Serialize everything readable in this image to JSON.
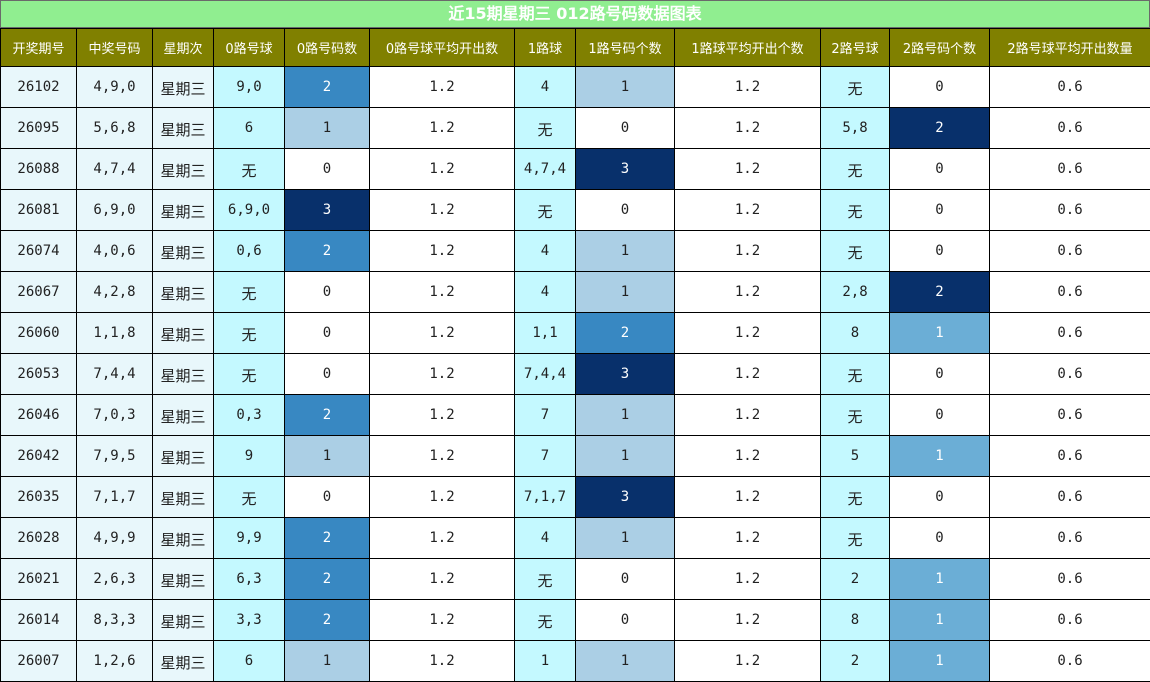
{
  "chart_data": {
    "type": "table",
    "title": "近15期星期三 012路号码数据图表",
    "columns": [
      "开奖期号",
      "中奖号码",
      "星期次",
      "0路号球",
      "0路号码数",
      "0路号球平均开出数",
      "1路球",
      "1路号码个数",
      "1路球平均开出个数",
      "2路号球",
      "2路号码个数",
      "2路号球平均开出数量"
    ],
    "rows": [
      [
        "26102",
        "4,9,0",
        "星期三",
        "9,0",
        "2",
        "1.2",
        "4",
        "1",
        "1.2",
        "无",
        "0",
        "0.6"
      ],
      [
        "26095",
        "5,6,8",
        "星期三",
        "6",
        "1",
        "1.2",
        "无",
        "0",
        "1.2",
        "5,8",
        "2",
        "0.6"
      ],
      [
        "26088",
        "4,7,4",
        "星期三",
        "无",
        "0",
        "1.2",
        "4,7,4",
        "3",
        "1.2",
        "无",
        "0",
        "0.6"
      ],
      [
        "26081",
        "6,9,0",
        "星期三",
        "6,9,0",
        "3",
        "1.2",
        "无",
        "0",
        "1.2",
        "无",
        "0",
        "0.6"
      ],
      [
        "26074",
        "4,0,6",
        "星期三",
        "0,6",
        "2",
        "1.2",
        "4",
        "1",
        "1.2",
        "无",
        "0",
        "0.6"
      ],
      [
        "26067",
        "4,2,8",
        "星期三",
        "无",
        "0",
        "1.2",
        "4",
        "1",
        "1.2",
        "2,8",
        "2",
        "0.6"
      ],
      [
        "26060",
        "1,1,8",
        "星期三",
        "无",
        "0",
        "1.2",
        "1,1",
        "2",
        "1.2",
        "8",
        "1",
        "0.6"
      ],
      [
        "26053",
        "7,4,4",
        "星期三",
        "无",
        "0",
        "1.2",
        "7,4,4",
        "3",
        "1.2",
        "无",
        "0",
        "0.6"
      ],
      [
        "26046",
        "7,0,3",
        "星期三",
        "0,3",
        "2",
        "1.2",
        "7",
        "1",
        "1.2",
        "无",
        "0",
        "0.6"
      ],
      [
        "26042",
        "7,9,5",
        "星期三",
        "9",
        "1",
        "1.2",
        "7",
        "1",
        "1.2",
        "5",
        "1",
        "0.6"
      ],
      [
        "26035",
        "7,1,7",
        "星期三",
        "无",
        "0",
        "1.2",
        "7,1,7",
        "3",
        "1.2",
        "无",
        "0",
        "0.6"
      ],
      [
        "26028",
        "4,9,9",
        "星期三",
        "9,9",
        "2",
        "1.2",
        "4",
        "1",
        "1.2",
        "无",
        "0",
        "0.6"
      ],
      [
        "26021",
        "2,6,3",
        "星期三",
        "6,3",
        "2",
        "1.2",
        "无",
        "0",
        "1.2",
        "2",
        "1",
        "0.6"
      ],
      [
        "26014",
        "8,3,3",
        "星期三",
        "3,3",
        "2",
        "1.2",
        "无",
        "0",
        "1.2",
        "8",
        "1",
        "0.6"
      ],
      [
        "26007",
        "1,2,6",
        "星期三",
        "6",
        "1",
        "1.2",
        "1",
        "1",
        "1.2",
        "2",
        "1",
        "0.6"
      ]
    ]
  },
  "colors": {
    "title_bg": "#90ee90",
    "header_bg": "#808000",
    "row_bg": "#e8f7fb",
    "alt_bg": "#c4f9ff",
    "plain_bg": "#ffffff",
    "count_0_route": {
      "1": "#abcfe5",
      "2": "#3888c2",
      "3": "#08306b"
    },
    "count_1_route": {
      "1": "#abcfe5",
      "2": "#3888c2",
      "3": "#08306b"
    },
    "count_2_route": {
      "1": "#6baed6",
      "2": "#08306b"
    }
  }
}
